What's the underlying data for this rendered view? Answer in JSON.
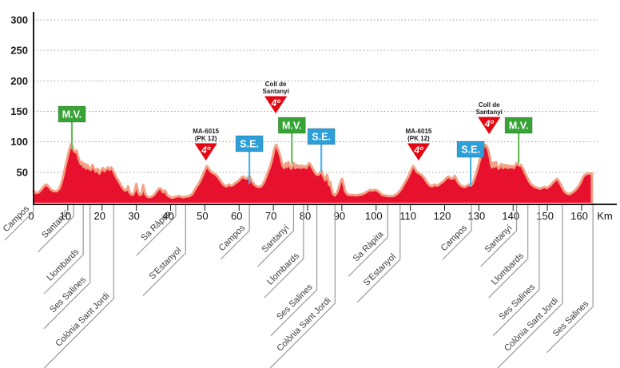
{
  "chart_data": {
    "type": "area",
    "title": "",
    "xlabel": "Km",
    "ylabel": "",
    "x_ticks": [
      0,
      10,
      20,
      30,
      40,
      50,
      60,
      70,
      80,
      90,
      100,
      110,
      120,
      130,
      140,
      150,
      160
    ],
    "x_axis_unit_label": "Km",
    "xlim": [
      0,
      170
    ],
    "y_ticks": [
      50,
      100,
      150,
      200,
      250,
      300
    ],
    "ylim": [
      0,
      310
    ],
    "grid": "horizontal-dotted",
    "series_name": "stage-elevation-profile",
    "finish_km": 163,
    "colors": {
      "area_fill": "#e8112d",
      "area_border": "#f4a083",
      "mv_box": "#38a336",
      "mv_line": "#67bb5c",
      "se_box": "#2d9fd9",
      "se_line": "#4fb3e8",
      "cat4_triangle": "#e30613",
      "axis": "#1a1a1a",
      "grid_line": "#9b9b9b",
      "town_leader": "#999999",
      "town_text": "#3a3a3a"
    },
    "profile_km_m": [
      [
        0,
        20
      ],
      [
        0.7,
        16
      ],
      [
        1.5,
        17
      ],
      [
        2.2,
        21
      ],
      [
        3,
        27
      ],
      [
        3.7,
        30
      ],
      [
        4.5,
        26
      ],
      [
        5.2,
        21
      ],
      [
        6,
        19
      ],
      [
        6.8,
        19
      ],
      [
        7.5,
        23
      ],
      [
        8,
        30
      ],
      [
        8.6,
        42
      ],
      [
        9.2,
        57
      ],
      [
        9.8,
        72
      ],
      [
        10.4,
        86
      ],
      [
        11,
        97
      ],
      [
        11.4,
        91
      ],
      [
        11.8,
        85
      ],
      [
        12.2,
        83
      ],
      [
        12.6,
        86
      ],
      [
        13,
        76
      ],
      [
        13.4,
        69
      ],
      [
        13.8,
        63
      ],
      [
        14.2,
        67
      ],
      [
        14.6,
        59
      ],
      [
        15,
        64
      ],
      [
        15.4,
        56
      ],
      [
        15.8,
        62
      ],
      [
        16.2,
        56
      ],
      [
        16.7,
        54
      ],
      [
        17.2,
        62
      ],
      [
        17.7,
        56
      ],
      [
        18.2,
        51
      ],
      [
        18.7,
        56
      ],
      [
        19.2,
        48
      ],
      [
        19.7,
        53
      ],
      [
        20.2,
        57
      ],
      [
        20.7,
        52
      ],
      [
        21.2,
        55
      ],
      [
        21.7,
        58
      ],
      [
        22.2,
        54
      ],
      [
        22.7,
        58
      ],
      [
        23.2,
        53
      ],
      [
        23.7,
        47
      ],
      [
        24.2,
        41
      ],
      [
        24.7,
        37
      ],
      [
        25.2,
        32
      ],
      [
        25.7,
        27
      ],
      [
        26.2,
        23
      ],
      [
        26.7,
        20
      ],
      [
        27.2,
        21
      ],
      [
        27.6,
        27
      ],
      [
        28,
        17
      ],
      [
        28.5,
        14
      ],
      [
        29,
        13
      ],
      [
        29.5,
        19
      ],
      [
        30,
        31
      ],
      [
        30.5,
        18
      ],
      [
        31,
        13
      ],
      [
        31.5,
        14
      ],
      [
        32,
        29
      ],
      [
        32.5,
        16
      ],
      [
        33,
        11
      ],
      [
        33.7,
        9
      ],
      [
        34.5,
        10
      ],
      [
        35.2,
        13
      ],
      [
        36,
        19
      ],
      [
        36.6,
        23
      ],
      [
        37.2,
        23
      ],
      [
        37.8,
        17
      ],
      [
        38.4,
        20
      ],
      [
        39,
        13
      ],
      [
        39.6,
        10
      ],
      [
        40.5,
        8
      ],
      [
        41.5,
        10
      ],
      [
        42.5,
        11
      ],
      [
        43.5,
        9
      ],
      [
        44.5,
        10
      ],
      [
        45.5,
        11
      ],
      [
        46.3,
        14
      ],
      [
        47,
        21
      ],
      [
        47.7,
        27
      ],
      [
        48.4,
        33
      ],
      [
        49.1,
        41
      ],
      [
        49.7,
        49
      ],
      [
        50.2,
        56
      ],
      [
        50.6,
        60
      ],
      [
        51,
        57
      ],
      [
        51.5,
        53
      ],
      [
        52,
        50
      ],
      [
        52.7,
        48
      ],
      [
        53.4,
        45
      ],
      [
        54,
        41
      ],
      [
        54.6,
        36
      ],
      [
        55.2,
        31
      ],
      [
        55.8,
        28
      ],
      [
        56.4,
        27
      ],
      [
        57,
        30
      ],
      [
        57.6,
        28
      ],
      [
        58.2,
        29
      ],
      [
        58.8,
        32
      ],
      [
        59.4,
        34
      ],
      [
        60,
        37
      ],
      [
        60.6,
        41
      ],
      [
        61.2,
        43
      ],
      [
        61.8,
        40
      ],
      [
        62.4,
        40
      ],
      [
        63,
        44
      ],
      [
        63.5,
        38
      ],
      [
        64,
        33
      ],
      [
        64.6,
        29
      ],
      [
        65.2,
        27
      ],
      [
        65.8,
        26
      ],
      [
        66.4,
        27
      ],
      [
        67,
        31
      ],
      [
        67.6,
        38
      ],
      [
        68.2,
        47
      ],
      [
        68.8,
        56
      ],
      [
        69.4,
        66
      ],
      [
        70,
        80
      ],
      [
        70.4,
        90
      ],
      [
        70.8,
        95
      ],
      [
        71.2,
        90
      ],
      [
        71.6,
        84
      ],
      [
        72,
        77
      ],
      [
        72.4,
        67
      ],
      [
        72.8,
        60
      ],
      [
        73.2,
        57
      ],
      [
        73.6,
        65
      ],
      [
        74,
        59
      ],
      [
        74.4,
        67
      ],
      [
        74.8,
        60
      ],
      [
        75.2,
        56
      ],
      [
        75.6,
        61
      ],
      [
        76,
        65
      ],
      [
        76.4,
        57
      ],
      [
        76.8,
        62
      ],
      [
        77.2,
        58
      ],
      [
        77.6,
        61
      ],
      [
        78,
        57
      ],
      [
        78.4,
        61
      ],
      [
        78.8,
        58
      ],
      [
        79.2,
        60
      ],
      [
        79.6,
        57
      ],
      [
        80,
        61
      ],
      [
        80.4,
        65
      ],
      [
        80.8,
        63
      ],
      [
        81.2,
        59
      ],
      [
        81.7,
        54
      ],
      [
        82.2,
        49
      ],
      [
        82.7,
        46
      ],
      [
        83.2,
        46
      ],
      [
        83.7,
        50
      ],
      [
        84.1,
        52
      ],
      [
        84.4,
        46
      ],
      [
        84.8,
        41
      ],
      [
        85.1,
        37
      ],
      [
        85.4,
        43
      ],
      [
        85.7,
        46
      ],
      [
        86,
        38
      ],
      [
        86.3,
        29
      ],
      [
        86.6,
        34
      ],
      [
        87,
        23
      ],
      [
        87.4,
        15
      ],
      [
        87.9,
        12
      ],
      [
        88.4,
        15
      ],
      [
        88.9,
        21
      ],
      [
        89.3,
        28
      ],
      [
        89.7,
        36
      ],
      [
        90.1,
        39
      ],
      [
        90.5,
        30
      ],
      [
        90.9,
        20
      ],
      [
        91.4,
        15
      ],
      [
        92,
        13
      ],
      [
        93,
        13
      ],
      [
        94,
        12
      ],
      [
        95,
        13
      ],
      [
        96,
        14
      ],
      [
        97,
        17
      ],
      [
        97.6,
        19
      ],
      [
        98.2,
        21
      ],
      [
        98.8,
        20
      ],
      [
        99.4,
        21
      ],
      [
        100,
        21
      ],
      [
        100.6,
        19
      ],
      [
        101.2,
        16
      ],
      [
        101.8,
        13
      ],
      [
        102.5,
        12
      ],
      [
        103.3,
        11
      ],
      [
        104.2,
        11
      ],
      [
        105,
        11
      ],
      [
        105.7,
        13
      ],
      [
        106.4,
        16
      ],
      [
        107,
        20
      ],
      [
        107.6,
        25
      ],
      [
        108.2,
        31
      ],
      [
        108.8,
        37
      ],
      [
        109.4,
        43
      ],
      [
        110,
        50
      ],
      [
        110.4,
        56
      ],
      [
        110.8,
        60
      ],
      [
        111.2,
        57
      ],
      [
        111.6,
        53
      ],
      [
        112,
        50
      ],
      [
        112.7,
        48
      ],
      [
        113.4,
        45
      ],
      [
        114,
        41
      ],
      [
        114.6,
        36
      ],
      [
        115.2,
        31
      ],
      [
        115.8,
        28
      ],
      [
        116.4,
        27
      ],
      [
        117,
        30
      ],
      [
        117.6,
        28
      ],
      [
        118.2,
        29
      ],
      [
        118.8,
        32
      ],
      [
        119.4,
        34
      ],
      [
        120,
        37
      ],
      [
        120.6,
        41
      ],
      [
        121.2,
        43
      ],
      [
        121.8,
        40
      ],
      [
        122.4,
        40
      ],
      [
        123,
        44
      ],
      [
        123.5,
        38
      ],
      [
        124,
        33
      ],
      [
        124.6,
        29
      ],
      [
        125.2,
        27
      ],
      [
        125.8,
        26
      ],
      [
        126.4,
        27
      ],
      [
        127,
        30
      ],
      [
        127.6,
        28
      ],
      [
        128.1,
        31
      ],
      [
        128.6,
        38
      ],
      [
        129.2,
        48
      ],
      [
        129.8,
        60
      ],
      [
        130.4,
        73
      ],
      [
        131,
        85
      ],
      [
        131.6,
        93
      ],
      [
        132,
        95
      ],
      [
        132.4,
        91
      ],
      [
        132.8,
        85
      ],
      [
        133.2,
        75
      ],
      [
        133.5,
        64
      ],
      [
        133.8,
        58
      ],
      [
        134.2,
        66
      ],
      [
        134.6,
        59
      ],
      [
        135,
        67
      ],
      [
        135.4,
        60
      ],
      [
        135.8,
        56
      ],
      [
        136.2,
        60
      ],
      [
        136.6,
        64
      ],
      [
        137,
        57
      ],
      [
        137.4,
        62
      ],
      [
        137.8,
        58
      ],
      [
        138.2,
        62
      ],
      [
        138.6,
        57
      ],
      [
        139,
        61
      ],
      [
        139.4,
        58
      ],
      [
        139.8,
        60
      ],
      [
        140.2,
        57
      ],
      [
        140.6,
        61
      ],
      [
        141,
        65
      ],
      [
        141.4,
        63
      ],
      [
        141.8,
        61
      ],
      [
        142.3,
        62
      ],
      [
        142.8,
        57
      ],
      [
        143.3,
        51
      ],
      [
        143.8,
        45
      ],
      [
        144.3,
        39
      ],
      [
        144.8,
        34
      ],
      [
        145.3,
        30
      ],
      [
        145.8,
        28
      ],
      [
        146.3,
        26
      ],
      [
        146.8,
        25
      ],
      [
        147.3,
        24
      ],
      [
        147.8,
        23
      ],
      [
        148.3,
        24
      ],
      [
        148.8,
        25
      ],
      [
        149.3,
        26
      ],
      [
        149.8,
        24
      ],
      [
        150.3,
        26
      ],
      [
        150.8,
        28
      ],
      [
        151.3,
        31
      ],
      [
        151.8,
        34
      ],
      [
        152.3,
        37
      ],
      [
        152.8,
        39
      ],
      [
        153.3,
        36
      ],
      [
        153.8,
        31
      ],
      [
        154.3,
        25
      ],
      [
        154.8,
        20
      ],
      [
        155.3,
        17
      ],
      [
        155.8,
        15
      ],
      [
        156.4,
        14
      ],
      [
        157,
        16
      ],
      [
        157.6,
        18
      ],
      [
        158.2,
        21
      ],
      [
        158.8,
        25
      ],
      [
        159.4,
        30
      ],
      [
        160,
        37
      ],
      [
        160.5,
        43
      ],
      [
        161,
        46
      ],
      [
        161.6,
        48
      ],
      [
        162.2,
        48
      ],
      [
        163,
        48
      ]
    ],
    "markers": {
      "mv": {
        "label": "M.V.",
        "items": [
          {
            "km": 11.2,
            "box_top": 133,
            "line_end_m": 88
          },
          {
            "km": 75.4,
            "box_top": 147,
            "line_end_m": 64
          },
          {
            "km": 141.6,
            "box_top": 147,
            "line_end_m": 65
          }
        ]
      },
      "se": {
        "label": "S.E.",
        "items": [
          {
            "km": 63.0,
            "box_top": 170,
            "line_end_m": 31
          },
          {
            "km": 84.0,
            "box_top": 161,
            "line_end_m": 50
          },
          {
            "km": 127.6,
            "box_top": 177,
            "line_end_m": 27
          }
        ]
      },
      "cat4": {
        "grade_label": "4º",
        "items": [
          {
            "km": 50.3,
            "title_lines": [
              "MA-6015",
              "(PK 12)"
            ],
            "tri_top": 179
          },
          {
            "km": 70.7,
            "title_lines": [
              "Coll de",
              "Santanyí"
            ],
            "tri_top": 120
          },
          {
            "km": 112.4,
            "title_lines": [
              "MA-6015",
              "(PK 12)"
            ],
            "tri_top": 179
          },
          {
            "km": 133.0,
            "title_lines": [
              "Coll de",
              "Santanyí"
            ],
            "tri_top": 146
          }
        ]
      }
    },
    "towns": [
      {
        "name": "Campos",
        "km": 0,
        "drop": 8
      },
      {
        "name": "Santanyí",
        "km": 11.7,
        "drop": 14
      },
      {
        "name": "Llombards",
        "km": 14.5,
        "drop": 62
      },
      {
        "name": "Ses Salines",
        "km": 16.5,
        "drop": 97
      },
      {
        "name": "Colònia Sant Jordi",
        "km": 23.4,
        "drop": 117
      },
      {
        "name": "Sa Ràpita",
        "km": 41.5,
        "drop": 14
      },
      {
        "name": "S'Estanyol",
        "km": 44.4,
        "drop": 60
      },
      {
        "name": "Campos",
        "km": 63.0,
        "drop": 32
      },
      {
        "name": "Santanyí",
        "km": 75.9,
        "drop": 32
      },
      {
        "name": "Llombards",
        "km": 78.8,
        "drop": 67
      },
      {
        "name": "Ses Salines",
        "km": 82.7,
        "drop": 106
      },
      {
        "name": "Colònia Sant Jordi",
        "km": 88.0,
        "drop": 123
      },
      {
        "name": "Sa Ràpita",
        "km": 103.4,
        "drop": 40
      },
      {
        "name": "S'Estanyol",
        "km": 107.0,
        "drop": 68
      },
      {
        "name": "Campos",
        "km": 127.8,
        "drop": 32
      },
      {
        "name": "Santanyí",
        "km": 141.0,
        "drop": 32
      },
      {
        "name": "Llombards",
        "km": 144.3,
        "drop": 67
      },
      {
        "name": "Ses Salines",
        "km": 147.6,
        "drop": 106
      },
      {
        "name": "Colònia Sant Jordi",
        "km": 154.4,
        "drop": 123
      },
      {
        "name": "Ses Salines",
        "km": 163.3,
        "drop": 127
      }
    ]
  }
}
